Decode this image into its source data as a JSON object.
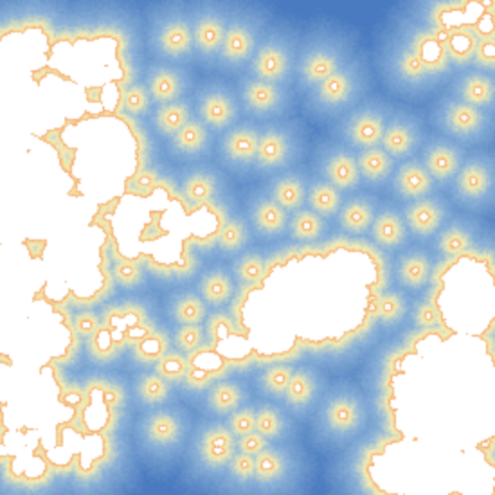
{
  "map": {
    "kind": "distance-to-feature raster",
    "palette": {
      "far": "#4a7bc0",
      "mid_far": "#8fb4d8",
      "mid": "#f4efb8",
      "near_mid": "#f5a468",
      "near": "#d7402a",
      "feature": "#ffffff"
    },
    "seed": 7
  }
}
